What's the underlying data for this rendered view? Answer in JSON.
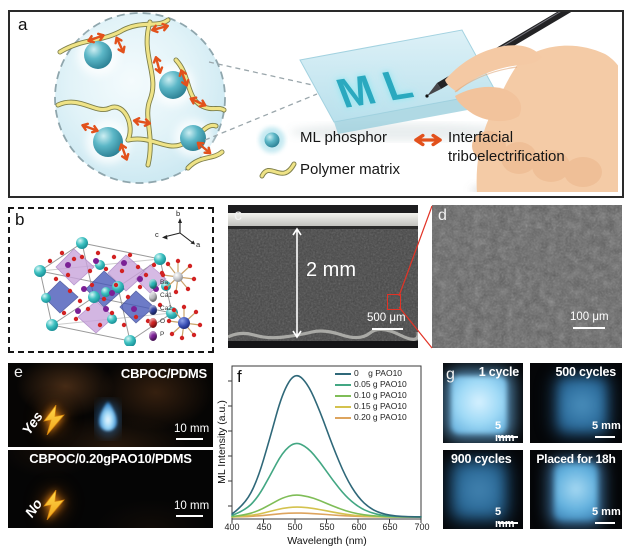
{
  "figure": {
    "panel_a": {
      "label": "a",
      "slab_text": "M L",
      "legend": {
        "ml_phosphor": "ML phosphor",
        "polymer_matrix": "Polymer matrix",
        "interfacial_line1": "Interfacial",
        "interfacial_line2": "triboelectrification"
      }
    },
    "panel_b": {
      "label": "b",
      "axis_labels": {
        "a": "a",
        "b": "b",
        "c": "c"
      },
      "legend": [
        {
          "name": "Ba",
          "color": "#27b5b5"
        },
        {
          "name": "Ca1",
          "color": "#bfc0c4"
        },
        {
          "name": "Ca2",
          "color": "#2f3f9e"
        },
        {
          "name": "O",
          "color": "#cf1f1f"
        },
        {
          "name": "P",
          "color": "#7c1f96"
        }
      ]
    },
    "panel_c": {
      "label": "c",
      "thickness_label": "2 mm",
      "scale_bar": "500 μm"
    },
    "panel_d": {
      "label": "d",
      "scale_bar": "100 μm"
    },
    "panel_e": {
      "label": "e",
      "top": {
        "title": "CBPOC/PDMS",
        "badge": "Yes",
        "scale_bar": "10 mm"
      },
      "bottom": {
        "title": "CBPOC/0.20gPAO10/PDMS",
        "badge": "No",
        "scale_bar": "10 mm"
      }
    },
    "panel_f": {
      "label": "f"
    },
    "panel_g": {
      "label": "g",
      "photos": [
        {
          "title": "1 cycle",
          "scale_bar": "5 mm"
        },
        {
          "title": "500 cycles",
          "scale_bar": "5 mm"
        },
        {
          "title": "900 cycles",
          "scale_bar": "5 mm"
        },
        {
          "title": "Placed for 18h",
          "scale_bar": "5 mm"
        }
      ]
    }
  },
  "chart_data": {
    "type": "line",
    "title": "",
    "xlabel": "Wavelength (nm)",
    "ylabel": "ML Intensity (a.u.)",
    "xlim": [
      400,
      700
    ],
    "x_ticks": [
      400,
      450,
      500,
      550,
      600,
      650,
      700
    ],
    "grid": false,
    "legend_position": "upper right",
    "peak_wavelength_nm": 500,
    "y_unit": "arbitrary units, peak of 0 g curve normalized to 100",
    "x": [
      400,
      420,
      440,
      460,
      480,
      500,
      520,
      540,
      560,
      580,
      600,
      620,
      640,
      660,
      680,
      700
    ],
    "series": [
      {
        "name": "0    g PAO10",
        "color": "#2f6879",
        "values": [
          2.1,
          8.5,
          24.9,
          54.0,
          85.7,
          100,
          92.3,
          72.6,
          48.7,
          27.8,
          13.5,
          5.6,
          2.0,
          0.6,
          0.2,
          0.1
        ]
      },
      {
        "name": "0.05 g PAO10",
        "color": "#43a783",
        "values": [
          1.1,
          4.4,
          12.9,
          28.1,
          44.6,
          52.0,
          48.0,
          37.8,
          25.3,
          14.5,
          7.0,
          2.9,
          1.0,
          0.3,
          0.1,
          0.1
        ]
      },
      {
        "name": "0.10 g PAO10",
        "color": "#7fbd57",
        "values": [
          0.3,
          1.3,
          3.9,
          8.4,
          13.3,
          15.5,
          14.3,
          11.3,
          7.5,
          4.3,
          2.1,
          0.9,
          0.3,
          0.1,
          0.1,
          0.0
        ]
      },
      {
        "name": "0.15 g PAO10",
        "color": "#d4c24e",
        "values": [
          0.1,
          0.6,
          1.7,
          3.8,
          6.0,
          7.0,
          6.5,
          5.1,
          3.4,
          1.9,
          0.9,
          0.4,
          0.1,
          0.1,
          0.0,
          0.0
        ]
      },
      {
        "name": "0.20 g PAO10",
        "color": "#dda45e",
        "values": [
          0.1,
          0.2,
          0.7,
          1.5,
          2.4,
          2.8,
          2.6,
          2.0,
          1.4,
          0.8,
          0.4,
          0.2,
          0.1,
          0.0,
          0.0,
          0.0
        ]
      }
    ]
  }
}
